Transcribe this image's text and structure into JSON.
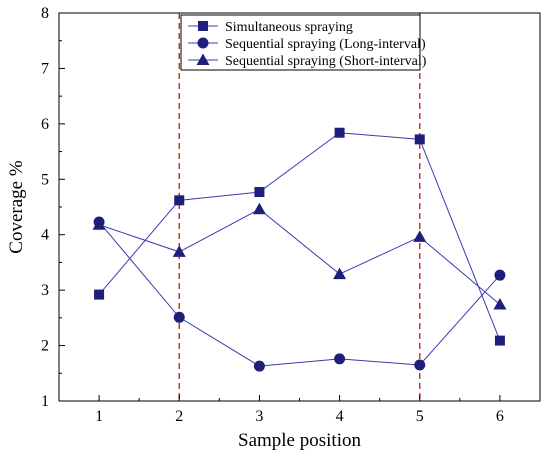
{
  "chart_data": {
    "type": "line",
    "xlabel": "Sample position",
    "ylabel": "Coverage %",
    "xlim": [
      0.5,
      6.5
    ],
    "ylim": [
      1,
      8
    ],
    "x_ticks": [
      1,
      2,
      3,
      4,
      5,
      6
    ],
    "y_ticks": [
      1,
      2,
      3,
      4,
      5,
      6,
      7,
      8
    ],
    "grid": false,
    "legend_position": "top-right",
    "vertical_reference_lines": [
      {
        "x": 2,
        "style": "dashed",
        "color": "#c0392b"
      },
      {
        "x": 5,
        "style": "dashed",
        "color": "#c0392b"
      }
    ],
    "series": [
      {
        "name": "Simultaneous spraying",
        "marker": "square",
        "color": "#1f1f7a",
        "x": [
          1,
          2,
          3,
          4,
          5,
          6
        ],
        "values": [
          2.92,
          4.62,
          4.77,
          5.84,
          5.72,
          2.09
        ]
      },
      {
        "name": "Sequential spraying (Long-interval)",
        "marker": "circle",
        "color": "#1f1f7a",
        "x": [
          1,
          2,
          3,
          4,
          5,
          6
        ],
        "values": [
          4.23,
          2.51,
          1.63,
          1.76,
          1.65,
          3.27
        ]
      },
      {
        "name": "Sequential spraying (Short-interval)",
        "marker": "triangle",
        "color": "#1f1f7a",
        "x": [
          1,
          2,
          3,
          4,
          5,
          6
        ],
        "values": [
          4.18,
          3.69,
          4.46,
          3.29,
          3.96,
          2.74
        ]
      }
    ]
  }
}
